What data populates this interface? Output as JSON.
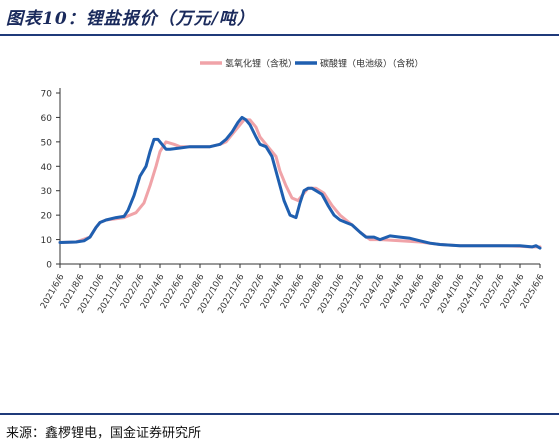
{
  "figure": {
    "title": "图表10：锂盐报价（万元/吨）",
    "source": "来源：鑫椤锂电，国金证券研究所"
  },
  "chart_data": {
    "type": "line",
    "ylim": [
      0,
      70
    ],
    "yticks": [
      0,
      10,
      20,
      30,
      40,
      50,
      60,
      70
    ],
    "xlabels": [
      "2021/6/6",
      "2021/8/6",
      "2021/10/6",
      "2021/12/6",
      "2022/2/6",
      "2022/4/6",
      "2022/6/6",
      "2022/8/6",
      "2022/10/6",
      "2022/12/6",
      "2023/2/6",
      "2023/4/6",
      "2023/6/6",
      "2023/8/6",
      "2023/10/6",
      "2023/12/6",
      "2024/2/6",
      "2024/4/6",
      "2024/6/6",
      "2024/8/6",
      "2024/10/6",
      "2024/12/6",
      "2025/2/6",
      "2025/4/6",
      "2025/6/6"
    ],
    "grid": false,
    "legend": "top",
    "series": [
      {
        "name": "氢氧化锂（含税）",
        "color": "#f0a3a8",
        "width": 3,
        "x": [
          0,
          0.8,
          1.5,
          1.8,
          2.0,
          2.3,
          2.8,
          3.2,
          3.5,
          3.8,
          4.2,
          4.5,
          4.8,
          5.0,
          5.3,
          5.7,
          6.0,
          6.5,
          7.0,
          7.5,
          8.0,
          8.3,
          8.7,
          9.0,
          9.2,
          9.5,
          9.8,
          10.0,
          10.2,
          10.5,
          10.8,
          11.0,
          11.3,
          11.6,
          11.9,
          12.2,
          12.4,
          12.8,
          13.2,
          13.6,
          14.0,
          14.3,
          14.6,
          15.0,
          15.5,
          16.0,
          17.0,
          18.0,
          19.0,
          20.0,
          21.0,
          22.0,
          23.0,
          23.5,
          24.0
        ],
        "y": [
          8.8,
          9.0,
          11.0,
          15.0,
          17.0,
          18.0,
          18.5,
          19.0,
          20.0,
          21.0,
          25.0,
          32.0,
          40.0,
          46.0,
          50.0,
          49.0,
          48.0,
          48.0,
          48.0,
          48.0,
          49.0,
          50.0,
          54.0,
          57.0,
          59.0,
          59.0,
          56.0,
          52.0,
          50.0,
          47.0,
          44.0,
          38.0,
          32.0,
          27.0,
          26.0,
          29.0,
          31.0,
          31.0,
          29.0,
          24.0,
          20.0,
          18.0,
          16.0,
          13.0,
          10.0,
          10.0,
          9.5,
          9.0,
          8.0,
          7.5,
          7.5,
          7.5,
          7.3,
          7.0,
          7.0
        ]
      },
      {
        "name": "碳酸锂（电池级）（含税）",
        "color": "#1f5fb0",
        "width": 3,
        "x": [
          0,
          0.8,
          1.2,
          1.5,
          1.8,
          2.0,
          2.3,
          2.8,
          3.2,
          3.4,
          3.7,
          4.0,
          4.3,
          4.5,
          4.7,
          4.9,
          5.1,
          5.3,
          5.5,
          6.0,
          6.5,
          7.0,
          7.5,
          8.0,
          8.3,
          8.6,
          8.9,
          9.1,
          9.3,
          9.5,
          9.8,
          10.0,
          10.3,
          10.6,
          10.9,
          11.2,
          11.5,
          11.8,
          12.0,
          12.2,
          12.4,
          12.6,
          12.8,
          13.1,
          13.4,
          13.7,
          14.0,
          14.3,
          14.6,
          15.0,
          15.3,
          15.7,
          16.0,
          16.5,
          17.0,
          17.5,
          18.0,
          18.5,
          19.0,
          20.0,
          21.0,
          22.0,
          23.0,
          23.6,
          23.8,
          24.0
        ],
        "y": [
          8.8,
          9.0,
          9.5,
          11.0,
          15.0,
          17.0,
          18.0,
          19.0,
          19.5,
          22.0,
          28.0,
          36.0,
          40.0,
          46.0,
          51.0,
          51.0,
          49.0,
          47.0,
          47.0,
          47.5,
          48.0,
          48.0,
          48.0,
          49.0,
          51.0,
          54.0,
          58.0,
          60.0,
          59.0,
          57.0,
          52.0,
          49.0,
          48.0,
          44.0,
          35.0,
          26.0,
          20.0,
          19.0,
          25.0,
          30.0,
          31.0,
          31.0,
          30.0,
          28.5,
          24.0,
          20.0,
          18.0,
          17.0,
          16.0,
          13.0,
          11.0,
          11.0,
          10.0,
          11.5,
          11.0,
          10.5,
          9.5,
          8.5,
          8.0,
          7.5,
          7.5,
          7.5,
          7.5,
          7.0,
          7.5,
          6.5
        ]
      }
    ]
  }
}
